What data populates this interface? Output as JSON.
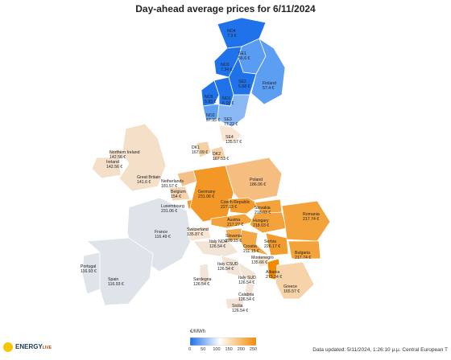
{
  "title": "Day-ahead average prices for 6/11/2024",
  "legend": {
    "title": "€/MWh",
    "ticks": [
      "0",
      "50",
      "100",
      "150",
      "200",
      "250"
    ],
    "min": 0,
    "max": 270,
    "colors": [
      "#1e6fe8",
      "#ffffff",
      "#f38a00"
    ]
  },
  "footer": "Data updated: 5/11/2024, 1:26:10 μ.μ. Central European T",
  "logo": {
    "name": "ENERGY",
    "suffix": "LIVE"
  },
  "regions": [
    {
      "id": "no4",
      "label": "NO4",
      "value_text": "7.3 €",
      "value": 7.3,
      "color": "#1f72ea"
    },
    {
      "id": "se1",
      "label": "SE1",
      "value_text": "56.6 €",
      "value": 56.6,
      "color": "#5a9cf2"
    },
    {
      "id": "no3",
      "label": "NO3",
      "value_text": "7.34 €",
      "value": 7.34,
      "color": "#1f72ea"
    },
    {
      "id": "se2",
      "label": "SE2",
      "value_text": "5.68 €",
      "value": 5.68,
      "color": "#1f72ea"
    },
    {
      "id": "finland",
      "label": "Finland",
      "value_text": "57.4 €",
      "value": 57.4,
      "color": "#5c9ef2"
    },
    {
      "id": "no5",
      "label": "NO5",
      "value_text": "5.83 €",
      "value": 5.83,
      "color": "#1f72ea"
    },
    {
      "id": "no1",
      "label": "NO1",
      "value_text": "6.15 €",
      "value": 6.15,
      "color": "#1f72ea"
    },
    {
      "id": "no2",
      "label": "NO2",
      "value_text": "57.95 €",
      "value": 57.95,
      "color": "#5ea0f2"
    },
    {
      "id": "se3",
      "label": "SE3",
      "value_text": "77.22 €",
      "value": 77.22,
      "color": "#8ab8f5"
    },
    {
      "id": "se4",
      "label": "SE4",
      "value_text": "135.57 €",
      "value": 135.57,
      "color": "#f8e6d2"
    },
    {
      "id": "dk1",
      "label": "DK1",
      "value_text": "167.09 €",
      "value": 167.09,
      "color": "#f7d1a6"
    },
    {
      "id": "dk2",
      "label": "DK2",
      "value_text": "167.53 €",
      "value": 167.53,
      "color": "#f7d1a6"
    },
    {
      "id": "northern-ireland",
      "label": "Northern Ireland",
      "value_text": "142.56 €",
      "value": 142.56,
      "color": "#f4dfc9"
    },
    {
      "id": "ireland",
      "label": "Ireland",
      "value_text": "142.56 €",
      "value": 142.56,
      "color": "#f4dfc9"
    },
    {
      "id": "great-britain",
      "label": "Great Britain",
      "value_text": "141.6 €",
      "value": 141.6,
      "color": "#f4dfc9"
    },
    {
      "id": "netherlands",
      "label": "Netherlands",
      "value_text": "181.57 €",
      "value": 181.57,
      "color": "#f5c088"
    },
    {
      "id": "belgium",
      "label": "Belgium",
      "value_text": "154 €",
      "value": 154,
      "color": "#f6d4b0"
    },
    {
      "id": "luxembourg",
      "label": "Luxembourg",
      "value_text": "231.06 €",
      "value": 231.06,
      "color": "#f39826"
    },
    {
      "id": "germany",
      "label": "Germany",
      "value_text": "231.06 €",
      "value": 231.06,
      "color": "#f39826"
    },
    {
      "id": "poland",
      "label": "Poland",
      "value_text": "186.06 €",
      "value": 186.06,
      "color": "#f5bd80"
    },
    {
      "id": "czech-republic",
      "label": "Czech Republic",
      "value_text": "227.13 €",
      "value": 227.13,
      "color": "#f39a2a"
    },
    {
      "id": "slovakia",
      "label": "Slovakia",
      "value_text": "218.03 €",
      "value": 218.03,
      "color": "#f4a23a"
    },
    {
      "id": "austria",
      "label": "Austria",
      "value_text": "217.27 €",
      "value": 217.27,
      "color": "#f4a23a"
    },
    {
      "id": "hungary",
      "label": "Hungary",
      "value_text": "218.03 €",
      "value": 218.03,
      "color": "#f4a23a"
    },
    {
      "id": "romania",
      "label": "Romania",
      "value_text": "217.74 €",
      "value": 217.74,
      "color": "#f4a23a"
    },
    {
      "id": "france",
      "label": "France",
      "value_text": "116.49 €",
      "value": 116.49,
      "color": "#dfe3ea"
    },
    {
      "id": "switzerland",
      "label": "Switzerland",
      "value_text": "135.87 €",
      "value": 135.87,
      "color": "#f8e6d2"
    },
    {
      "id": "slovenia",
      "label": "Slovenia",
      "value_text": "209.15 €",
      "value": 209.15,
      "color": "#f4aa4a"
    },
    {
      "id": "croatia",
      "label": "Croatia",
      "value_text": "211.15 €",
      "value": 211.15,
      "color": "#f4a845"
    },
    {
      "id": "serbia",
      "label": "Serbia",
      "value_text": "226.17 €",
      "value": 226.17,
      "color": "#f39c2e"
    },
    {
      "id": "bulgaria",
      "label": "Bulgaria",
      "value_text": "217.74 €",
      "value": 217.74,
      "color": "#f4a23a"
    },
    {
      "id": "montenegro",
      "label": "Montenegro",
      "value_text": "135.66 €",
      "value": 135.66,
      "color": "#f8e6d2"
    },
    {
      "id": "albania",
      "label": "Albania",
      "value_text": "273.34 €",
      "value": 273.34,
      "color": "#f38a00"
    },
    {
      "id": "greece",
      "label": "Greece",
      "value_text": "165.57 €",
      "value": 165.57,
      "color": "#f7d3aa"
    },
    {
      "id": "portugal",
      "label": "Portugal",
      "value_text": "116.93 €",
      "value": 116.93,
      "color": "#dfe3ea"
    },
    {
      "id": "spain",
      "label": "Spain",
      "value_text": "116.93 €",
      "value": 116.93,
      "color": "#dfe3ea"
    },
    {
      "id": "italy-nord",
      "label": "Italy NOR",
      "value_text": "126.54 €",
      "value": 126.54,
      "color": "#f2e5d7"
    },
    {
      "id": "italy-csud",
      "label": "Italy CSUD",
      "value_text": "126.54 €",
      "value": 126.54,
      "color": "#f2e5d7"
    },
    {
      "id": "italy-sud",
      "label": "Italy SUD",
      "value_text": "126.54 €",
      "value": 126.54,
      "color": "#f2e5d7"
    },
    {
      "id": "sardegna",
      "label": "Sardegna",
      "value_text": "126.54 €",
      "value": 126.54,
      "color": "#f2e5d7"
    },
    {
      "id": "calabria",
      "label": "Calabria",
      "value_text": "126.54 €",
      "value": 126.54,
      "color": "#f2e5d7"
    },
    {
      "id": "sicilia",
      "label": "Sicilia",
      "value_text": "126.54 €",
      "value": 126.54,
      "color": "#f2e5d7"
    }
  ]
}
